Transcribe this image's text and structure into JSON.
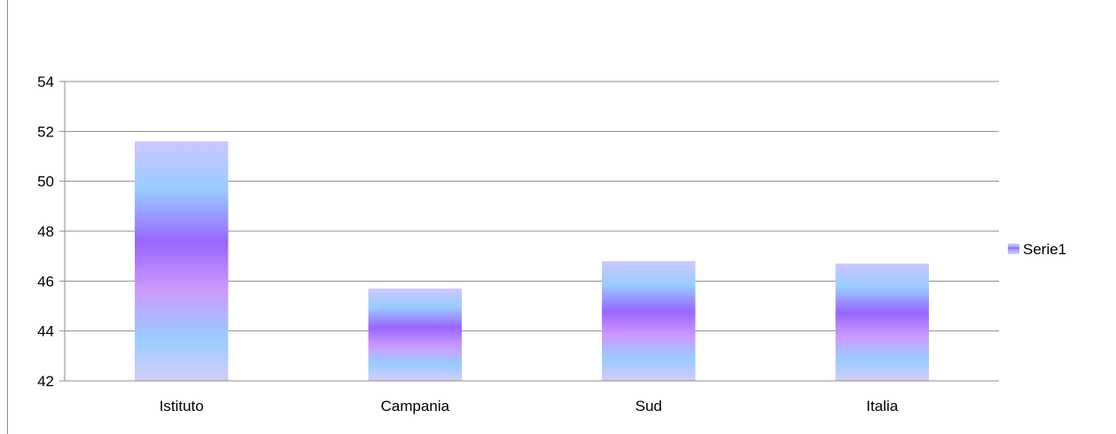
{
  "chart_data": {
    "type": "bar",
    "categories": [
      "Istituto",
      "Campania",
      "Sud",
      "Italia"
    ],
    "series": [
      {
        "name": "Serie1",
        "values": [
          51.6,
          45.7,
          46.8,
          46.7
        ]
      }
    ],
    "ylim": [
      42,
      54
    ],
    "yticks": [
      "42",
      "44",
      "46",
      "48",
      "50",
      "52",
      "54"
    ],
    "grid": true,
    "legend": "right",
    "colors": {
      "bar_light": "#c9c5ff",
      "bar_blue": "#99ccff",
      "bar_violet": "#9966ff",
      "bar_pink": "#cc99ff",
      "gridline": "#8c8c8c",
      "axis": "#8c8c8c"
    }
  }
}
